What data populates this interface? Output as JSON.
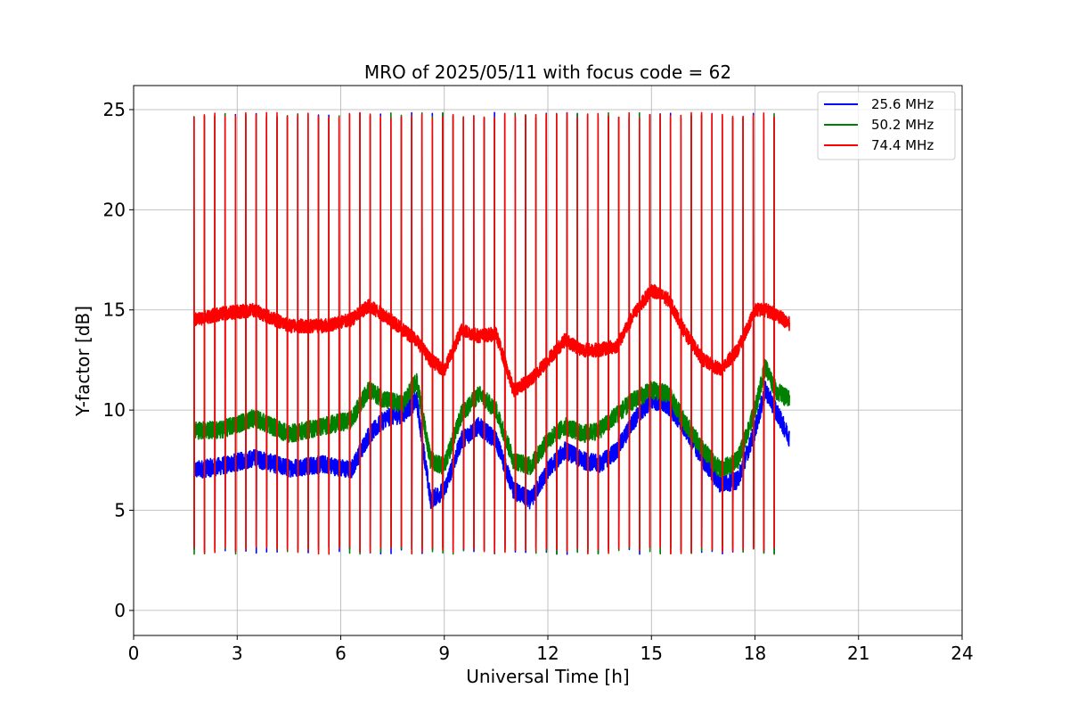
{
  "chart_data": {
    "type": "line",
    "title": "MRO of 2025/05/11 with focus code = 62",
    "xlabel": "Universal Time [h]",
    "ylabel": "Y-factor [dB]",
    "xlim": [
      0,
      24
    ],
    "ylim": [
      -1.25,
      26.2
    ],
    "xticks": [
      0,
      3,
      6,
      9,
      12,
      15,
      18,
      21,
      24
    ],
    "yticks": [
      0,
      5,
      10,
      15,
      20,
      25
    ],
    "grid": true,
    "legend_position": "top-right",
    "calibration": {
      "start_h": 1.75,
      "end_h": 18.8,
      "period_h": 0.3,
      "pulse_high_db": 24.7,
      "pulse_low_db": 3.0
    },
    "series": [
      {
        "name": "25.6 MHz",
        "color": "#0000ff",
        "x": [
          1.75,
          2.5,
          3.5,
          4.5,
          5.5,
          6.3,
          6.8,
          7.3,
          7.8,
          8.2,
          8.6,
          9.0,
          9.5,
          10.0,
          10.5,
          11.0,
          11.5,
          12.0,
          12.5,
          13.0,
          13.5,
          14.0,
          14.5,
          15.0,
          15.5,
          16.0,
          16.5,
          17.0,
          17.5,
          18.0,
          18.3,
          18.6,
          19.0
        ],
        "y": [
          7.0,
          7.2,
          7.6,
          7.1,
          7.3,
          7.0,
          8.7,
          9.6,
          9.8,
          10.5,
          5.5,
          6.0,
          8.5,
          9.2,
          8.5,
          6.0,
          5.5,
          7.0,
          8.0,
          7.5,
          7.3,
          8.0,
          9.5,
          10.5,
          10.2,
          9.0,
          7.5,
          6.3,
          6.5,
          9.0,
          11.0,
          10.0,
          8.6
        ]
      },
      {
        "name": "50.2 MHz",
        "color": "#008000",
        "x": [
          1.75,
          2.5,
          3.5,
          4.5,
          5.5,
          6.3,
          6.8,
          7.3,
          7.8,
          8.2,
          8.6,
          9.0,
          9.5,
          10.0,
          10.5,
          11.0,
          11.5,
          12.0,
          12.5,
          13.0,
          13.5,
          14.0,
          14.5,
          15.0,
          15.5,
          16.0,
          16.5,
          17.0,
          17.5,
          18.0,
          18.3,
          18.6,
          19.0
        ],
        "y": [
          9.0,
          9.0,
          9.6,
          8.8,
          9.2,
          9.5,
          11.0,
          10.5,
          10.3,
          11.5,
          7.5,
          7.2,
          9.8,
          10.8,
          10.0,
          7.5,
          7.2,
          8.5,
          9.2,
          8.8,
          9.0,
          9.8,
          10.5,
          11.0,
          10.8,
          9.3,
          8.0,
          7.0,
          7.5,
          10.0,
          12.2,
          11.0,
          10.5
        ]
      },
      {
        "name": "74.4 MHz",
        "color": "#ff0000",
        "x": [
          1.75,
          2.5,
          3.5,
          4.5,
          5.5,
          6.3,
          6.8,
          7.3,
          7.8,
          8.2,
          8.6,
          9.0,
          9.5,
          10.0,
          10.5,
          11.0,
          11.5,
          12.0,
          12.5,
          13.0,
          13.5,
          14.0,
          14.5,
          15.0,
          15.5,
          16.0,
          16.5,
          17.0,
          17.5,
          18.0,
          18.3,
          18.6,
          19.0
        ],
        "y": [
          14.5,
          14.8,
          15.0,
          14.2,
          14.2,
          14.5,
          15.2,
          14.7,
          14.0,
          13.5,
          12.5,
          12.0,
          14.0,
          13.7,
          13.8,
          11.0,
          11.5,
          12.5,
          13.5,
          13.0,
          13.0,
          13.2,
          14.8,
          16.0,
          15.5,
          13.8,
          12.5,
          12.0,
          13.0,
          15.0,
          15.0,
          14.8,
          14.3
        ]
      }
    ]
  }
}
